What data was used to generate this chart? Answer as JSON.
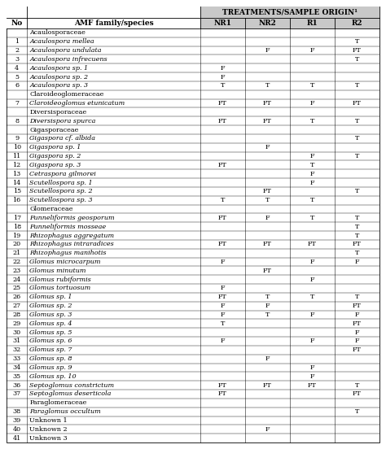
{
  "title": "TREATMENTS/SAMPLE ORIGIN¹",
  "col_headers": [
    "No",
    "AMF family/species",
    "NR1",
    "NR2",
    "R1",
    "R2"
  ],
  "rows": [
    {
      "no": "",
      "species": "Acaulosporaceae",
      "nr1": "",
      "nr2": "",
      "r1": "",
      "r2": "",
      "italic": false,
      "header": true
    },
    {
      "no": "1",
      "species": "Acaulospora mellea",
      "nr1": "",
      "nr2": "",
      "r1": "",
      "r2": "T",
      "italic": true,
      "header": false
    },
    {
      "no": "2",
      "species": "Acaulospora undulata",
      "nr1": "",
      "nr2": "F",
      "r1": "F",
      "r2": "FT",
      "italic": true,
      "header": false
    },
    {
      "no": "3",
      "species": "Acaulospora infrecuens",
      "nr1": "",
      "nr2": "",
      "r1": "",
      "r2": "T",
      "italic": true,
      "header": false
    },
    {
      "no": "4",
      "species": "Acaulospora sp. 1",
      "nr1": "F",
      "nr2": "",
      "r1": "",
      "r2": "",
      "italic": true,
      "header": false
    },
    {
      "no": "5",
      "species": "Acaulospora sp. 2",
      "nr1": "F",
      "nr2": "",
      "r1": "",
      "r2": "",
      "italic": true,
      "header": false
    },
    {
      "no": "6",
      "species": "Acaulospora sp. 3",
      "nr1": "T",
      "nr2": "T",
      "r1": "T",
      "r2": "T",
      "italic": true,
      "header": false
    },
    {
      "no": "",
      "species": "Claroideoglomeraceae",
      "nr1": "",
      "nr2": "",
      "r1": "",
      "r2": "",
      "italic": false,
      "header": true
    },
    {
      "no": "7",
      "species": "Claroideoglomus etunicatum",
      "nr1": "FT",
      "nr2": "FT",
      "r1": "F",
      "r2": "FT",
      "italic": true,
      "header": false
    },
    {
      "no": "",
      "species": "Diversisporaceae",
      "nr1": "",
      "nr2": "",
      "r1": "",
      "r2": "",
      "italic": false,
      "header": true
    },
    {
      "no": "8",
      "species": "Diversispora spurca",
      "nr1": "FT",
      "nr2": "FT",
      "r1": "T",
      "r2": "T",
      "italic": true,
      "header": false
    },
    {
      "no": "",
      "species": "Gigasporaceae",
      "nr1": "",
      "nr2": "",
      "r1": "",
      "r2": "",
      "italic": false,
      "header": true
    },
    {
      "no": "9",
      "species": "Gigaspora cf. albida",
      "nr1": "",
      "nr2": "",
      "r1": "",
      "r2": "T",
      "italic": true,
      "header": false
    },
    {
      "no": "10",
      "species": "Gigaspora sp. 1",
      "nr1": "",
      "nr2": "F",
      "r1": "",
      "r2": "",
      "italic": true,
      "header": false
    },
    {
      "no": "11",
      "species": "Gigaspora sp. 2",
      "nr1": "",
      "nr2": "",
      "r1": "F",
      "r2": "T",
      "italic": true,
      "header": false
    },
    {
      "no": "12",
      "species": "Gigaspora sp. 3",
      "nr1": "FT",
      "nr2": "",
      "r1": "T",
      "r2": "",
      "italic": true,
      "header": false
    },
    {
      "no": "13",
      "species": "Cetraspora gilmorei",
      "nr1": "",
      "nr2": "",
      "r1": "F",
      "r2": "",
      "italic": true,
      "header": false
    },
    {
      "no": "14",
      "species": "Scutellospora sp. 1",
      "nr1": "",
      "nr2": "",
      "r1": "F",
      "r2": "",
      "italic": true,
      "header": false
    },
    {
      "no": "15",
      "species": "Scutellospora sp. 2",
      "nr1": "",
      "nr2": "FT",
      "r1": "",
      "r2": "T",
      "italic": true,
      "header": false
    },
    {
      "no": "16",
      "species": "Scutellospora sp. 3",
      "nr1": "T",
      "nr2": "T",
      "r1": "T",
      "r2": "",
      "italic": true,
      "header": false
    },
    {
      "no": "",
      "species": "Glomeraceae",
      "nr1": "",
      "nr2": "",
      "r1": "",
      "r2": "",
      "italic": false,
      "header": true
    },
    {
      "no": "17",
      "species": "Funneliformis geosporum",
      "nr1": "FT",
      "nr2": "F",
      "r1": "T",
      "r2": "T",
      "italic": true,
      "header": false
    },
    {
      "no": "18",
      "species": "Funneliformis mosseae",
      "nr1": "",
      "nr2": "",
      "r1": "",
      "r2": "T",
      "italic": true,
      "header": false
    },
    {
      "no": "19",
      "species": "Rhizophagus aggregatum",
      "nr1": "",
      "nr2": "",
      "r1": "",
      "r2": "T",
      "italic": true,
      "header": false
    },
    {
      "no": "20",
      "species": "Rhizophagus intraradices",
      "nr1": "FT",
      "nr2": "FT",
      "r1": "FT",
      "r2": "FT",
      "italic": true,
      "header": false
    },
    {
      "no": "21",
      "species": "Rhizophagus manihotis",
      "nr1": "",
      "nr2": "",
      "r1": "",
      "r2": "T",
      "italic": true,
      "header": false
    },
    {
      "no": "22",
      "species": "Glomus microcarpum",
      "nr1": "F",
      "nr2": "",
      "r1": "F",
      "r2": "F",
      "italic": true,
      "header": false
    },
    {
      "no": "23",
      "species": "Glomus minutum",
      "nr1": "",
      "nr2": "FT",
      "r1": "",
      "r2": "",
      "italic": true,
      "header": false
    },
    {
      "no": "24",
      "species": "Glomus rubiformis",
      "nr1": "",
      "nr2": "",
      "r1": "F",
      "r2": "",
      "italic": true,
      "header": false
    },
    {
      "no": "25",
      "species": "Glomus tortuosum",
      "nr1": "F",
      "nr2": "",
      "r1": "",
      "r2": "",
      "italic": true,
      "header": false
    },
    {
      "no": "26",
      "species": "Glomus sp. 1",
      "nr1": "FT",
      "nr2": "T",
      "r1": "T",
      "r2": "T",
      "italic": true,
      "header": false
    },
    {
      "no": "27",
      "species": "Glomus sp. 2",
      "nr1": "F",
      "nr2": "F",
      "r1": "",
      "r2": "FT",
      "italic": true,
      "header": false
    },
    {
      "no": "28",
      "species": "Glomus sp. 3",
      "nr1": "F",
      "nr2": "T",
      "r1": "F",
      "r2": "F",
      "italic": true,
      "header": false
    },
    {
      "no": "29",
      "species": "Glomus sp. 4",
      "nr1": "T",
      "nr2": "",
      "r1": "",
      "r2": "FT",
      "italic": true,
      "header": false
    },
    {
      "no": "30",
      "species": "Glomus sp. 5",
      "nr1": "",
      "nr2": "",
      "r1": "",
      "r2": "F",
      "italic": true,
      "header": false
    },
    {
      "no": "31",
      "species": "Glomus sp. 6",
      "nr1": "F",
      "nr2": "",
      "r1": "F",
      "r2": "F",
      "italic": true,
      "header": false
    },
    {
      "no": "32",
      "species": "Glomus sp. 7",
      "nr1": "",
      "nr2": "",
      "r1": "",
      "r2": "FT",
      "italic": true,
      "header": false
    },
    {
      "no": "33",
      "species": "Glomus sp. 8",
      "nr1": "",
      "nr2": "F",
      "r1": "",
      "r2": "",
      "italic": true,
      "header": false
    },
    {
      "no": "34",
      "species": "Glomus sp. 9",
      "nr1": "",
      "nr2": "",
      "r1": "F",
      "r2": "",
      "italic": true,
      "header": false
    },
    {
      "no": "35",
      "species": "Glomus sp. 10",
      "nr1": "",
      "nr2": "",
      "r1": "F",
      "r2": "",
      "italic": true,
      "header": false
    },
    {
      "no": "36",
      "species": "Septoglomus constrictum",
      "nr1": "FT",
      "nr2": "FT",
      "r1": "FT",
      "r2": "T",
      "italic": true,
      "header": false
    },
    {
      "no": "37",
      "species": "Septoglomus deserticola",
      "nr1": "FT",
      "nr2": "",
      "r1": "",
      "r2": "FT",
      "italic": true,
      "header": false
    },
    {
      "no": "",
      "species": "Paraglomeraceae",
      "nr1": "",
      "nr2": "",
      "r1": "",
      "r2": "",
      "italic": false,
      "header": true
    },
    {
      "no": "38",
      "species": "Paraglomus occultum",
      "nr1": "",
      "nr2": "",
      "r1": "",
      "r2": "T",
      "italic": true,
      "header": false
    },
    {
      "no": "39",
      "species": "Unknown 1",
      "nr1": "",
      "nr2": "",
      "r1": "",
      "r2": "",
      "italic": false,
      "header": false
    },
    {
      "no": "40",
      "species": "Unknown 2",
      "nr1": "",
      "nr2": "F",
      "r1": "",
      "r2": "",
      "italic": false,
      "header": false
    },
    {
      "no": "41",
      "species": "Unknown 3",
      "nr1": "",
      "nr2": "",
      "r1": "",
      "r2": "",
      "italic": false,
      "header": false
    }
  ],
  "bg_header": "#c8c8c8",
  "font_size": 5.8,
  "header_font_size": 6.5
}
